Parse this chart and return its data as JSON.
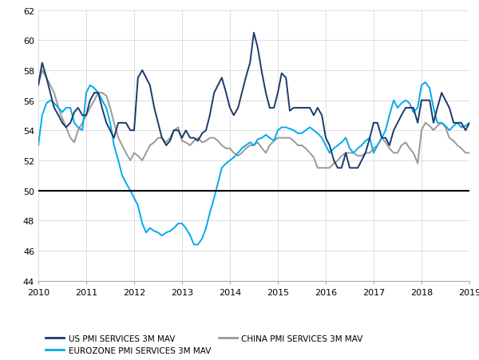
{
  "title": "",
  "ylim": [
    44,
    62
  ],
  "xlim": [
    2010,
    2019
  ],
  "yticks": [
    44,
    46,
    48,
    50,
    52,
    54,
    56,
    58,
    60,
    62
  ],
  "xticks": [
    2010,
    2011,
    2012,
    2013,
    2014,
    2015,
    2016,
    2017,
    2018,
    2019
  ],
  "hline_y": 50,
  "hline_color": "#000000",
  "grid_color": "#d0d0d0",
  "background_color": "#ffffff",
  "us_color": "#1a3a6b",
  "eurozone_color": "#00aaee",
  "china_color": "#999999",
  "us_label": "US PMI SERVICES 3M MAV",
  "eurozone_label": "EUROZONE PMI SERVICES 3M MAV",
  "china_label": "CHINA PMI SERVICES 3M MAV",
  "us_data": {
    "x": [
      2010.0,
      2010.08,
      2010.17,
      2010.25,
      2010.33,
      2010.42,
      2010.5,
      2010.58,
      2010.67,
      2010.75,
      2010.83,
      2010.92,
      2011.0,
      2011.08,
      2011.17,
      2011.25,
      2011.33,
      2011.42,
      2011.5,
      2011.58,
      2011.67,
      2011.75,
      2011.83,
      2011.92,
      2012.0,
      2012.08,
      2012.17,
      2012.25,
      2012.33,
      2012.42,
      2012.5,
      2012.58,
      2012.67,
      2012.75,
      2012.83,
      2012.92,
      2013.0,
      2013.08,
      2013.17,
      2013.25,
      2013.33,
      2013.42,
      2013.5,
      2013.58,
      2013.67,
      2013.75,
      2013.83,
      2013.92,
      2014.0,
      2014.08,
      2014.17,
      2014.25,
      2014.33,
      2014.42,
      2014.5,
      2014.58,
      2014.67,
      2014.75,
      2014.83,
      2014.92,
      2015.0,
      2015.08,
      2015.17,
      2015.25,
      2015.33,
      2015.42,
      2015.5,
      2015.58,
      2015.67,
      2015.75,
      2015.83,
      2015.92,
      2016.0,
      2016.08,
      2016.17,
      2016.25,
      2016.33,
      2016.42,
      2016.5,
      2016.58,
      2016.67,
      2016.75,
      2016.83,
      2016.92,
      2017.0,
      2017.08,
      2017.17,
      2017.25,
      2017.33,
      2017.42,
      2017.5,
      2017.58,
      2017.67,
      2017.75,
      2017.83,
      2017.92,
      2018.0,
      2018.08,
      2018.17,
      2018.25,
      2018.33,
      2018.42,
      2018.5,
      2018.58,
      2018.67,
      2018.75,
      2018.83,
      2018.92,
      2019.0
    ],
    "y": [
      57.0,
      58.5,
      57.5,
      56.5,
      55.5,
      55.0,
      54.5,
      54.2,
      54.5,
      55.2,
      55.5,
      55.0,
      55.0,
      56.0,
      56.5,
      56.5,
      55.5,
      54.5,
      54.0,
      53.5,
      54.5,
      54.5,
      54.5,
      54.0,
      54.0,
      57.5,
      58.0,
      57.5,
      57.0,
      55.5,
      54.5,
      53.5,
      53.0,
      53.3,
      54.0,
      54.0,
      53.5,
      54.0,
      53.5,
      53.5,
      53.3,
      53.8,
      54.0,
      55.0,
      56.5,
      57.0,
      57.5,
      56.5,
      55.5,
      55.0,
      55.5,
      56.5,
      57.5,
      58.5,
      60.5,
      59.5,
      57.8,
      56.5,
      55.5,
      55.5,
      56.5,
      57.8,
      57.5,
      55.3,
      55.5,
      55.5,
      55.5,
      55.5,
      55.5,
      55.0,
      55.5,
      55.0,
      53.5,
      53.0,
      52.0,
      51.5,
      51.5,
      52.5,
      51.5,
      51.5,
      51.5,
      52.0,
      52.5,
      53.5,
      54.5,
      54.5,
      53.5,
      53.5,
      53.0,
      54.0,
      54.5,
      55.0,
      55.5,
      55.5,
      55.5,
      54.5,
      56.0,
      56.0,
      56.0,
      54.5,
      55.5,
      56.5,
      56.0,
      55.5,
      54.5,
      54.5,
      54.5,
      54.0,
      54.5
    ]
  },
  "eurozone_data": {
    "x": [
      2010.0,
      2010.08,
      2010.17,
      2010.25,
      2010.33,
      2010.42,
      2010.5,
      2010.58,
      2010.67,
      2010.75,
      2010.83,
      2010.92,
      2011.0,
      2011.08,
      2011.17,
      2011.25,
      2011.33,
      2011.42,
      2011.5,
      2011.58,
      2011.67,
      2011.75,
      2011.83,
      2011.92,
      2012.0,
      2012.08,
      2012.17,
      2012.25,
      2012.33,
      2012.42,
      2012.5,
      2012.58,
      2012.67,
      2012.75,
      2012.83,
      2012.92,
      2013.0,
      2013.08,
      2013.17,
      2013.25,
      2013.33,
      2013.42,
      2013.5,
      2013.58,
      2013.67,
      2013.75,
      2013.83,
      2013.92,
      2014.0,
      2014.08,
      2014.17,
      2014.25,
      2014.33,
      2014.42,
      2014.5,
      2014.58,
      2014.67,
      2014.75,
      2014.83,
      2014.92,
      2015.0,
      2015.08,
      2015.17,
      2015.25,
      2015.33,
      2015.42,
      2015.5,
      2015.58,
      2015.67,
      2015.75,
      2015.83,
      2015.92,
      2016.0,
      2016.08,
      2016.17,
      2016.25,
      2016.33,
      2016.42,
      2016.5,
      2016.58,
      2016.67,
      2016.75,
      2016.83,
      2016.92,
      2017.0,
      2017.08,
      2017.17,
      2017.25,
      2017.33,
      2017.42,
      2017.5,
      2017.58,
      2017.67,
      2017.75,
      2017.83,
      2017.92,
      2018.0,
      2018.08,
      2018.17,
      2018.25,
      2018.33,
      2018.42,
      2018.5,
      2018.58,
      2018.67,
      2018.75,
      2018.83,
      2018.92,
      2019.0
    ],
    "y": [
      53.0,
      55.0,
      55.8,
      56.0,
      55.8,
      55.5,
      55.2,
      55.5,
      55.5,
      54.5,
      54.2,
      54.0,
      56.5,
      57.0,
      56.8,
      56.5,
      56.0,
      55.5,
      54.5,
      53.0,
      52.0,
      51.0,
      50.5,
      50.0,
      49.5,
      49.0,
      47.8,
      47.2,
      47.5,
      47.3,
      47.2,
      47.0,
      47.2,
      47.3,
      47.5,
      47.8,
      47.8,
      47.5,
      47.0,
      46.4,
      46.4,
      46.8,
      47.5,
      48.5,
      49.5,
      50.5,
      51.5,
      51.8,
      52.0,
      52.2,
      52.5,
      52.8,
      53.0,
      53.2,
      53.0,
      53.4,
      53.5,
      53.7,
      53.5,
      53.3,
      54.0,
      54.2,
      54.2,
      54.1,
      54.0,
      53.8,
      53.8,
      54.0,
      54.2,
      54.0,
      53.8,
      53.5,
      53.0,
      52.5,
      52.8,
      53.0,
      53.2,
      53.5,
      52.8,
      52.5,
      52.8,
      53.0,
      53.3,
      53.5,
      52.5,
      53.0,
      53.5,
      54.0,
      55.0,
      56.0,
      55.5,
      55.8,
      56.0,
      55.8,
      55.2,
      55.5,
      57.0,
      57.2,
      56.8,
      55.5,
      54.5,
      54.5,
      54.3,
      54.0,
      54.3,
      54.5,
      54.2,
      54.3,
      54.5
    ]
  },
  "china_data": {
    "x": [
      2010.0,
      2010.08,
      2010.17,
      2010.25,
      2010.33,
      2010.42,
      2010.5,
      2010.58,
      2010.67,
      2010.75,
      2010.83,
      2010.92,
      2011.0,
      2011.08,
      2011.17,
      2011.25,
      2011.33,
      2011.42,
      2011.5,
      2011.58,
      2011.67,
      2011.75,
      2011.83,
      2011.92,
      2012.0,
      2012.08,
      2012.17,
      2012.25,
      2012.33,
      2012.42,
      2012.5,
      2012.58,
      2012.67,
      2012.75,
      2012.83,
      2012.92,
      2013.0,
      2013.08,
      2013.17,
      2013.25,
      2013.33,
      2013.42,
      2013.5,
      2013.58,
      2013.67,
      2013.75,
      2013.83,
      2013.92,
      2014.0,
      2014.08,
      2014.17,
      2014.25,
      2014.33,
      2014.42,
      2014.5,
      2014.58,
      2014.67,
      2014.75,
      2014.83,
      2014.92,
      2015.0,
      2015.08,
      2015.17,
      2015.25,
      2015.33,
      2015.42,
      2015.5,
      2015.58,
      2015.67,
      2015.75,
      2015.83,
      2015.92,
      2016.0,
      2016.08,
      2016.17,
      2016.25,
      2016.33,
      2016.42,
      2016.5,
      2016.58,
      2016.67,
      2016.75,
      2016.83,
      2016.92,
      2017.0,
      2017.08,
      2017.17,
      2017.25,
      2017.33,
      2017.42,
      2017.5,
      2017.58,
      2017.67,
      2017.75,
      2017.83,
      2017.92,
      2018.0,
      2018.08,
      2018.17,
      2018.25,
      2018.33,
      2018.42,
      2018.5,
      2018.58,
      2018.67,
      2018.75,
      2018.83,
      2018.92,
      2019.0
    ],
    "y": [
      57.0,
      58.0,
      57.5,
      57.0,
      56.5,
      55.5,
      54.8,
      54.2,
      53.5,
      53.2,
      54.0,
      54.5,
      55.0,
      55.5,
      56.0,
      56.5,
      56.5,
      56.3,
      55.5,
      54.5,
      53.5,
      53.0,
      52.5,
      52.0,
      52.5,
      52.3,
      52.0,
      52.5,
      53.0,
      53.2,
      53.5,
      53.5,
      53.2,
      53.5,
      54.0,
      54.2,
      53.3,
      53.2,
      53.0,
      53.3,
      53.5,
      53.2,
      53.3,
      53.5,
      53.5,
      53.3,
      53.0,
      52.8,
      52.8,
      52.5,
      52.3,
      52.5,
      52.8,
      53.0,
      53.0,
      53.2,
      52.8,
      52.5,
      53.0,
      53.3,
      53.5,
      53.5,
      53.5,
      53.5,
      53.3,
      53.0,
      53.0,
      52.8,
      52.5,
      52.2,
      51.5,
      51.5,
      51.5,
      51.5,
      51.8,
      52.0,
      52.3,
      52.5,
      52.5,
      52.5,
      52.3,
      52.3,
      52.5,
      52.5,
      52.8,
      53.0,
      53.5,
      53.2,
      52.8,
      52.5,
      52.5,
      53.0,
      53.2,
      52.8,
      52.5,
      51.8,
      54.0,
      54.5,
      54.3,
      54.0,
      54.3,
      54.5,
      54.2,
      53.5,
      53.3,
      53.0,
      52.8,
      52.5,
      52.5
    ]
  }
}
